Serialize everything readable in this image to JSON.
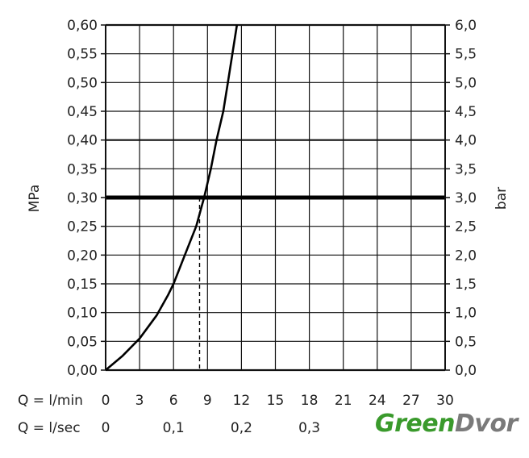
{
  "chart_data": {
    "type": "line",
    "ylabel_left": "MPa",
    "ylabel_right": "bar",
    "x_label": "Q = l/min",
    "x2_label": "Q = l/sec",
    "xlim": [
      0,
      30
    ],
    "ylim": [
      0,
      0.6
    ],
    "x_ticks": [
      "0",
      "3",
      "6",
      "9",
      "12",
      "15",
      "18",
      "21",
      "24",
      "27",
      "30"
    ],
    "x2_ticks": [
      {
        "x": 0,
        "label": "0"
      },
      {
        "x": 6,
        "label": "0,1"
      },
      {
        "x": 12,
        "label": "0,2"
      },
      {
        "x": 18,
        "label": "0,3"
      }
    ],
    "y_ticks_left": [
      "0,00",
      "0,05",
      "0,10",
      "0,15",
      "0,20",
      "0,25",
      "0,30",
      "0,35",
      "0,40",
      "0,45",
      "0,50",
      "0,55",
      "0,60"
    ],
    "y_ticks_right": [
      "0,0",
      "0,5",
      "1,0",
      "1,5",
      "2,0",
      "2,5",
      "3,0",
      "3,5",
      "4,0",
      "4,5",
      "5,0",
      "5,5",
      "6,0"
    ],
    "grid": true,
    "series": [
      {
        "values": [
          [
            0,
            0
          ],
          [
            1.5,
            0.025
          ],
          [
            3,
            0.055
          ],
          [
            4.5,
            0.095
          ],
          [
            5.5,
            0.13
          ],
          [
            6,
            0.15
          ],
          [
            7,
            0.2
          ],
          [
            8,
            0.25
          ],
          [
            8.7,
            0.3
          ],
          [
            9.3,
            0.35
          ],
          [
            9.8,
            0.4
          ],
          [
            10.4,
            0.45
          ],
          [
            10.8,
            0.5
          ],
          [
            11.2,
            0.55
          ],
          [
            11.6,
            0.6
          ]
        ]
      }
    ],
    "reference_line": {
      "y": 0.3,
      "x": 8.3
    }
  },
  "watermark": {
    "green": "Green",
    "grey": "Dvor"
  }
}
